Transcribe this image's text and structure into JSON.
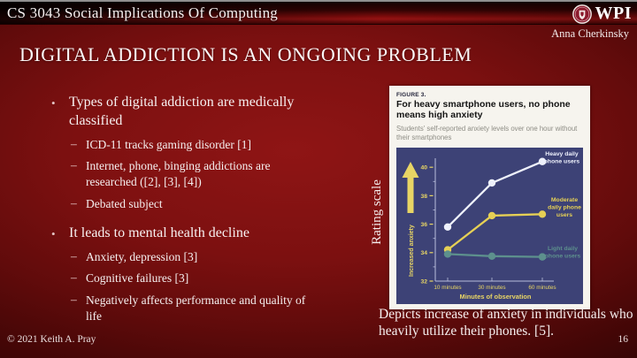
{
  "header": {
    "course_title": "CS 3043 Social Implications Of Computing",
    "logo_text": "WPI",
    "logo_icon": "wpi-seal-icon",
    "author": "Anna Cherkinsky"
  },
  "slide": {
    "title": "DIGITAL ADDICTION IS AN ONGOING PROBLEM",
    "bullets": [
      {
        "text": "Types of digital addiction are medically classified",
        "sub": [
          "ICD-11 tracks gaming disorder [1]",
          "Internet, phone, binging addictions are researched ([2], [3], [4])",
          "Debated subject"
        ]
      },
      {
        "text": "It leads to mental health decline",
        "sub": [
          "Anxiety, depression [3]",
          "Cognitive failures [3]",
          "Negatively affects performance and quality of life"
        ]
      }
    ],
    "rating_scale_label": "Rating scale",
    "figure_caption": "Depicts increase of anxiety in individuals who heavily utilize their phones. [5]."
  },
  "footer": {
    "copyright": "© 2021 Keith A. Pray",
    "page_number": "16"
  },
  "chart_data": {
    "type": "line",
    "figure_label": "FIGURE 3.",
    "title": "For heavy smartphone users, no phone means high anxiety",
    "subtitle": "Students' self-reported anxiety levels over one hour without their smartphones",
    "x": [
      "10 minutes",
      "30 minutes",
      "60 minutes"
    ],
    "xlabel": "Minutes of observation",
    "ylabel": "Increased anxiety",
    "ylim": [
      32,
      41
    ],
    "yticks": [
      40,
      38,
      36,
      34,
      32
    ],
    "grid": false,
    "legend_position": "right-of-lines",
    "series": [
      {
        "name": "Heavy daily phone users",
        "color": "#eef1fc",
        "values": [
          35.8,
          38.9,
          40.4
        ]
      },
      {
        "name": "Moderate daily phone users",
        "color": "#e6d055",
        "values": [
          34.2,
          36.6,
          36.7
        ]
      },
      {
        "name": "Light daily phone users",
        "color": "#5d908d",
        "values": [
          33.9,
          33.75,
          33.7
        ]
      }
    ],
    "colors": {
      "plot_bg": "#3d4276",
      "axis_line": "#b9bedc",
      "axis_text": "#e8d565"
    }
  }
}
